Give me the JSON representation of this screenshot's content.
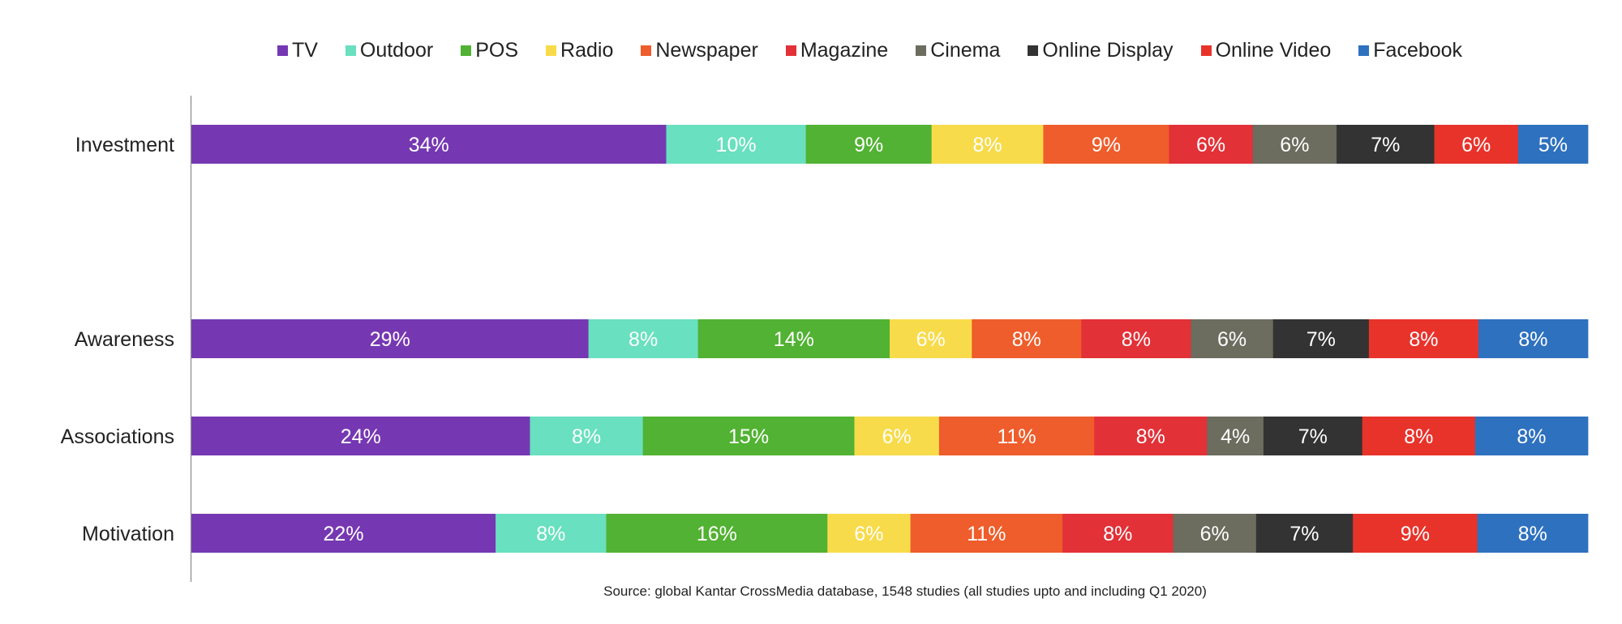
{
  "chart_data": {
    "type": "bar",
    "orientation": "horizontal",
    "stacked": true,
    "categories": [
      "Investment",
      "Awareness",
      "Associations",
      "Motivation"
    ],
    "series": [
      {
        "name": "TV",
        "color": "#7638B2",
        "values": [
          34,
          29,
          24,
          22
        ]
      },
      {
        "name": "Outdoor",
        "color": "#69E0BF",
        "values": [
          10,
          8,
          8,
          8
        ]
      },
      {
        "name": "POS",
        "color": "#52B233",
        "values": [
          9,
          14,
          15,
          16
        ]
      },
      {
        "name": "Radio",
        "color": "#F8DB4A",
        "values": [
          8,
          6,
          6,
          6
        ]
      },
      {
        "name": "Newspaper",
        "color": "#EE5D2B",
        "values": [
          9,
          8,
          11,
          11
        ]
      },
      {
        "name": "Magazine",
        "color": "#E23137",
        "values": [
          6,
          8,
          8,
          8
        ]
      },
      {
        "name": "Cinema",
        "color": "#6C6C5F",
        "values": [
          6,
          6,
          4,
          6
        ]
      },
      {
        "name": "Online Display",
        "color": "#333333",
        "values": [
          7,
          7,
          7,
          7
        ]
      },
      {
        "name": "Online Video",
        "color": "#E8332B",
        "values": [
          6,
          8,
          8,
          9
        ]
      },
      {
        "name": "Facebook",
        "color": "#2E71BF",
        "values": [
          5,
          8,
          8,
          8
        ]
      }
    ],
    "value_suffix": "%",
    "legend_position": "top",
    "grid": false
  },
  "source": "Source: global Kantar CrossMedia database, 1548 studies (all studies upto and including Q1 2020)"
}
